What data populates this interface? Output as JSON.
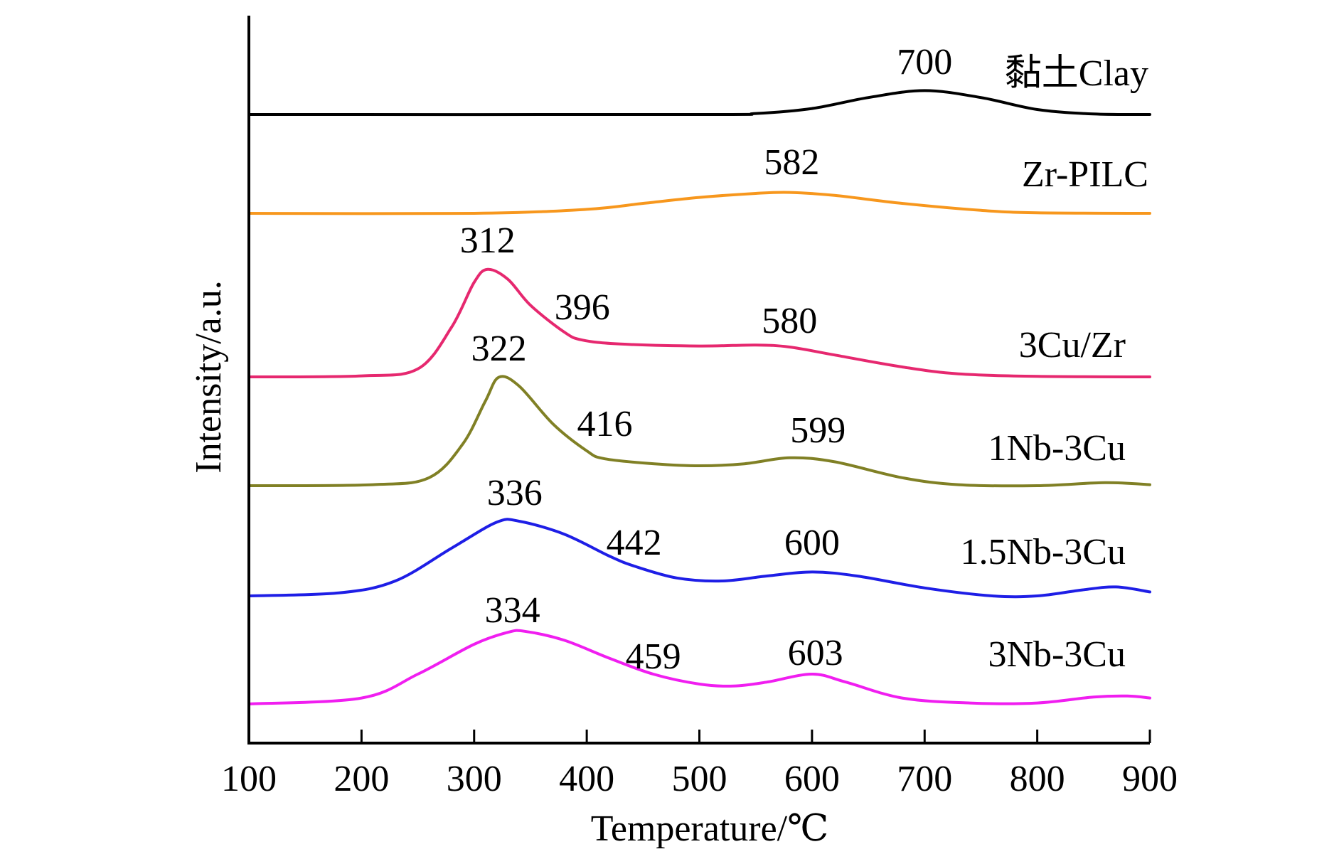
{
  "chart_data": {
    "type": "line",
    "xlabel": "Temperature/℃",
    "ylabel": "Intensity/a.u.",
    "xlim": [
      100,
      900
    ],
    "x_ticks": [
      "100",
      "200",
      "300",
      "400",
      "500",
      "600",
      "700",
      "800",
      "900"
    ],
    "y_ticks_shown": false,
    "grid": false,
    "series": [
      {
        "name": "黏土Clay",
        "color": "#000000",
        "baseline": 0,
        "points": [
          [
            100,
            0
          ],
          [
            500,
            0
          ],
          [
            550,
            0.01
          ],
          [
            600,
            0.06
          ],
          [
            650,
            0.17
          ],
          [
            700,
            0.24
          ],
          [
            750,
            0.17
          ],
          [
            800,
            0.05
          ],
          [
            850,
            0.005
          ],
          [
            900,
            0
          ]
        ],
        "peaks": [
          {
            "x": 700,
            "label": "700"
          }
        ]
      },
      {
        "name": "Zr-PILC",
        "color": "#F7971D",
        "baseline": 0,
        "points": [
          [
            100,
            0
          ],
          [
            300,
            0
          ],
          [
            400,
            0.04
          ],
          [
            450,
            0.1
          ],
          [
            500,
            0.16
          ],
          [
            550,
            0.2
          ],
          [
            580,
            0.21
          ],
          [
            620,
            0.18
          ],
          [
            680,
            0.1
          ],
          [
            750,
            0.03
          ],
          [
            800,
            0.005
          ],
          [
            900,
            0
          ]
        ],
        "peaks": [
          {
            "x": 582,
            "label": "582"
          }
        ]
      },
      {
        "name": "3Cu/Zr",
        "color": "#E6286F",
        "baseline": 0,
        "points": [
          [
            100,
            0
          ],
          [
            200,
            0.01
          ],
          [
            250,
            0.08
          ],
          [
            280,
            0.5
          ],
          [
            300,
            0.95
          ],
          [
            312,
            1.08
          ],
          [
            330,
            0.98
          ],
          [
            350,
            0.72
          ],
          [
            380,
            0.45
          ],
          [
            396,
            0.37
          ],
          [
            430,
            0.33
          ],
          [
            500,
            0.31
          ],
          [
            550,
            0.32
          ],
          [
            580,
            0.3
          ],
          [
            620,
            0.22
          ],
          [
            680,
            0.1
          ],
          [
            730,
            0.03
          ],
          [
            800,
            0.005
          ],
          [
            900,
            0
          ]
        ],
        "peaks": [
          {
            "x": 312,
            "label": "312"
          },
          {
            "x": 396,
            "label": "396"
          },
          {
            "x": 580,
            "label": "580"
          }
        ]
      },
      {
        "name": "1Nb-3Cu",
        "color": "#808025",
        "baseline": 0,
        "points": [
          [
            100,
            0
          ],
          [
            210,
            0.01
          ],
          [
            260,
            0.08
          ],
          [
            290,
            0.42
          ],
          [
            310,
            0.85
          ],
          [
            322,
            1.09
          ],
          [
            340,
            1.0
          ],
          [
            370,
            0.62
          ],
          [
            400,
            0.35
          ],
          [
            416,
            0.27
          ],
          [
            460,
            0.22
          ],
          [
            500,
            0.2
          ],
          [
            540,
            0.22
          ],
          [
            580,
            0.28
          ],
          [
            620,
            0.24
          ],
          [
            680,
            0.08
          ],
          [
            730,
            0.01
          ],
          [
            800,
            0.0
          ],
          [
            860,
            0.03
          ],
          [
            900,
            0.01
          ]
        ],
        "peaks": [
          {
            "x": 322,
            "label": "322"
          },
          {
            "x": 416,
            "label": "416"
          },
          {
            "x": 599,
            "label": "599"
          }
        ]
      },
      {
        "name": "1.5Nb-3Cu",
        "color": "#1E1EE6",
        "baseline": 0,
        "points": [
          [
            100,
            0
          ],
          [
            180,
            0.03
          ],
          [
            230,
            0.15
          ],
          [
            280,
            0.48
          ],
          [
            320,
            0.74
          ],
          [
            340,
            0.75
          ],
          [
            380,
            0.62
          ],
          [
            420,
            0.4
          ],
          [
            442,
            0.3
          ],
          [
            480,
            0.18
          ],
          [
            520,
            0.15
          ],
          [
            560,
            0.2
          ],
          [
            600,
            0.24
          ],
          [
            640,
            0.2
          ],
          [
            700,
            0.08
          ],
          [
            760,
            0.0
          ],
          [
            800,
            0.0
          ],
          [
            840,
            0.06
          ],
          [
            870,
            0.09
          ],
          [
            900,
            0.04
          ]
        ],
        "peaks": [
          {
            "x": 336,
            "label": "336"
          },
          {
            "x": 442,
            "label": "442"
          },
          {
            "x": 600,
            "label": "600"
          }
        ]
      },
      {
        "name": "3Nb-3Cu",
        "color": "#F01EF0",
        "baseline": 0,
        "points": [
          [
            100,
            0
          ],
          [
            200,
            0.06
          ],
          [
            250,
            0.3
          ],
          [
            300,
            0.6
          ],
          [
            330,
            0.72
          ],
          [
            345,
            0.73
          ],
          [
            380,
            0.64
          ],
          [
            420,
            0.46
          ],
          [
            459,
            0.3
          ],
          [
            500,
            0.2
          ],
          [
            530,
            0.18
          ],
          [
            560,
            0.22
          ],
          [
            600,
            0.3
          ],
          [
            630,
            0.22
          ],
          [
            680,
            0.06
          ],
          [
            740,
            0.01
          ],
          [
            800,
            0.01
          ],
          [
            850,
            0.07
          ],
          [
            880,
            0.08
          ],
          [
            900,
            0.06
          ]
        ],
        "peaks": [
          {
            "x": 334,
            "label": "334"
          },
          {
            "x": 459,
            "label": "459"
          },
          {
            "x": 603,
            "label": "603"
          }
        ]
      }
    ]
  }
}
